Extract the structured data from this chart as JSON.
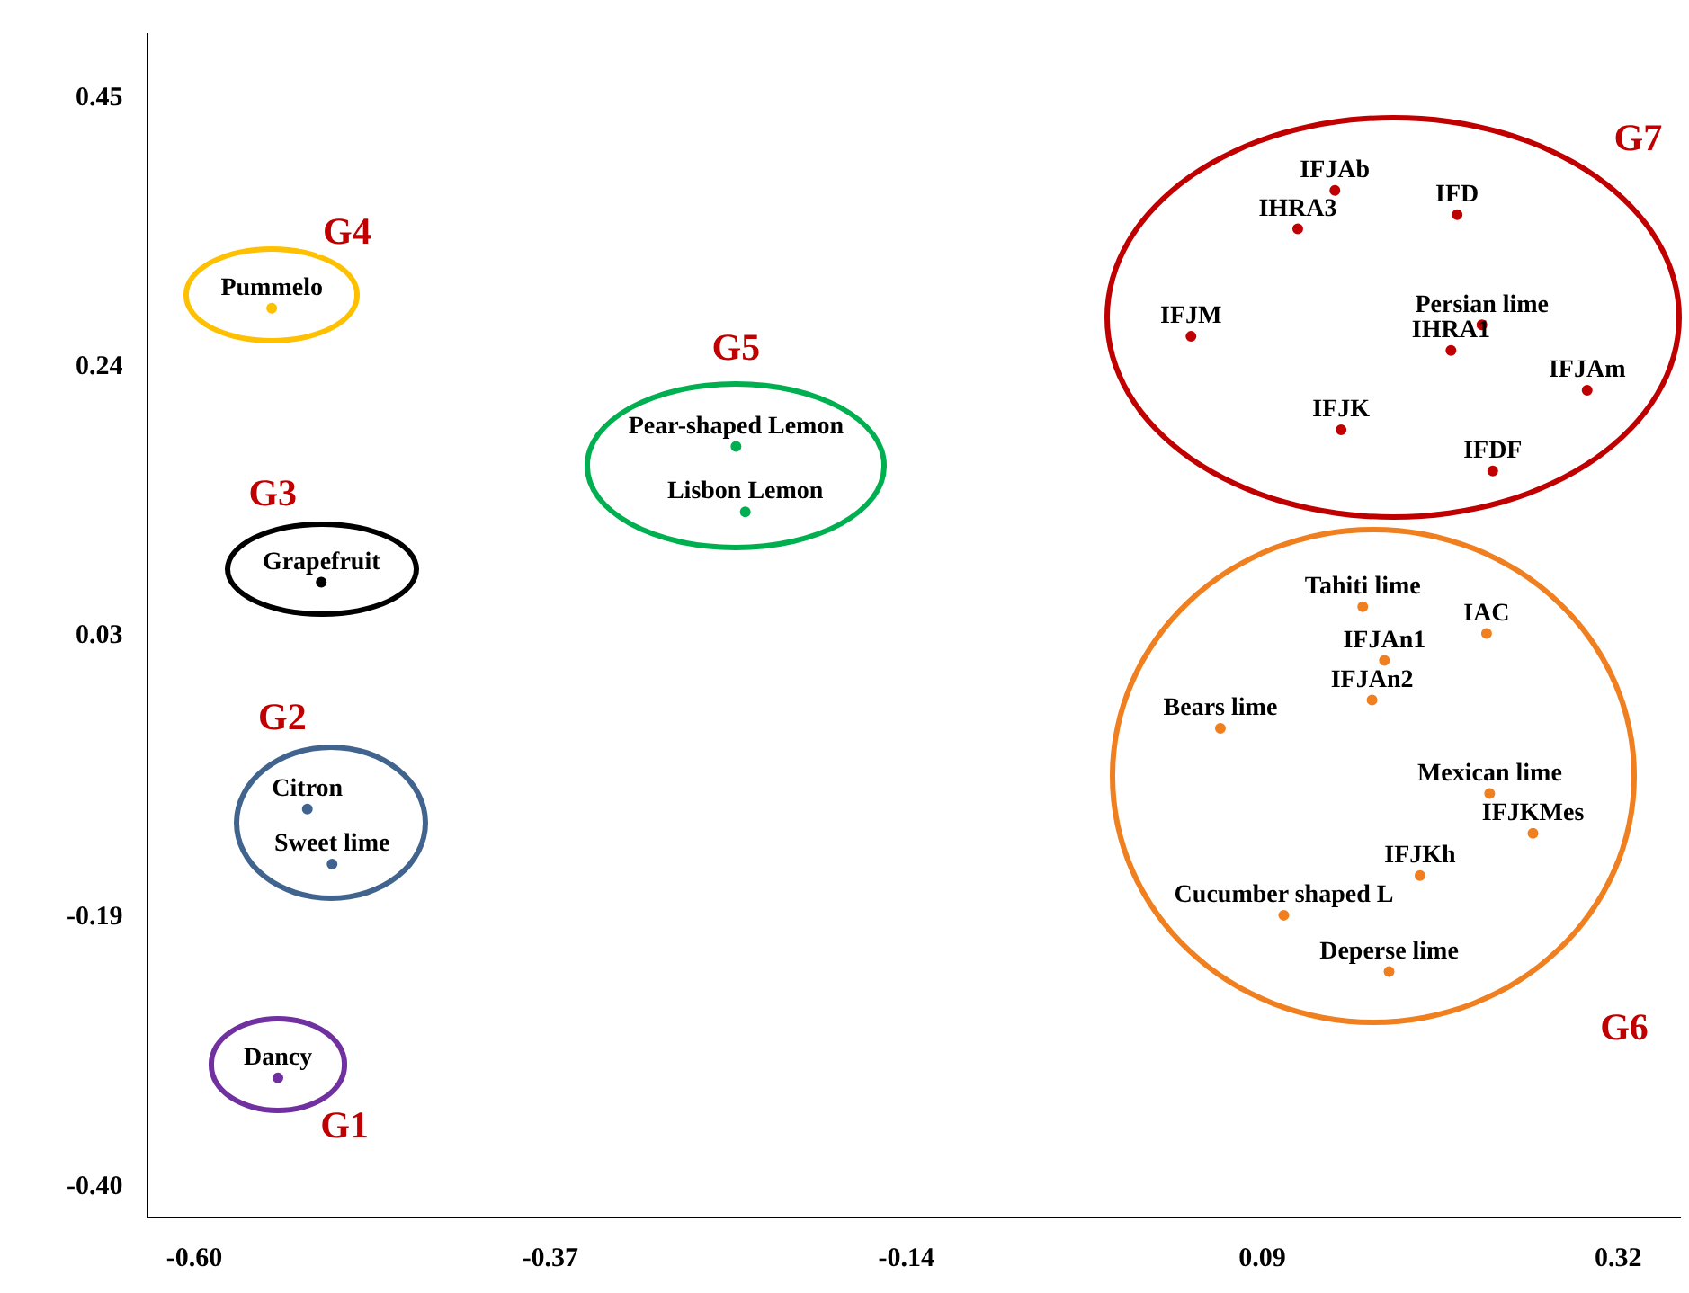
{
  "chart_data": {
    "type": "scatter",
    "marker": "circle",
    "grid": false,
    "legend": false,
    "annotations": [
      "G1",
      "G2",
      "G3",
      "G4",
      "G5",
      "G6",
      "G7"
    ],
    "xlim": [
      -0.63,
      0.36
    ],
    "ylim": [
      -0.424,
      0.5
    ],
    "xticks": [
      {
        "value": -0.6,
        "label": "-0.60"
      },
      {
        "value": -0.37,
        "label": "-0.37"
      },
      {
        "value": -0.14,
        "label": "-0.14"
      },
      {
        "value": 0.09,
        "label": "0.09"
      },
      {
        "value": 0.32,
        "label": "0.32"
      }
    ],
    "yticks": [
      {
        "value": -0.4,
        "label": "-0.40"
      },
      {
        "value": -0.19,
        "label": "-0.19"
      },
      {
        "value": 0.03,
        "label": "0.03"
      },
      {
        "value": 0.24,
        "label": "0.24"
      },
      {
        "value": 0.45,
        "label": "0.45"
      }
    ],
    "series": [
      {
        "color": "#7030a0",
        "x": [
          -0.546
        ],
        "values": [
          -0.315
        ],
        "value_labels": [
          "Dancy"
        ]
      },
      {
        "color": "#41648f",
        "x": [
          -0.527,
          -0.511
        ],
        "values": [
          -0.105,
          -0.148
        ],
        "value_labels": [
          "Citron",
          "Sweet lime"
        ]
      },
      {
        "color": "#000000",
        "x": [
          -0.518
        ],
        "values": [
          0.072
        ],
        "value_labels": [
          "Grapefruit"
        ]
      },
      {
        "color": "#ffc000",
        "x": [
          -0.55
        ],
        "values": [
          0.286
        ],
        "value_labels": [
          "Pummelo"
        ]
      },
      {
        "color": "#00b050",
        "x": [
          -0.25,
          -0.244
        ],
        "values": [
          0.178,
          0.127
        ],
        "value_labels": [
          "Pear-shaped Lemon",
          "Lisbon Lemon"
        ]
      },
      {
        "color": "#f07f20",
        "x": [
          0.155,
          0.235,
          0.169,
          0.161,
          0.063,
          0.237,
          0.265,
          0.192,
          0.104,
          0.172
        ],
        "values": [
          0.053,
          0.032,
          0.011,
          -0.02,
          -0.042,
          -0.093,
          -0.124,
          -0.157,
          -0.188,
          -0.232
        ],
        "value_labels": [
          "Tahiti lime",
          "IAC",
          "IFJAn1",
          "IFJAn2",
          "Bears lime",
          "Mexican lime",
          "IFJKMes",
          "IFJKh",
          "Cucumber shaped L",
          "Deperse lime"
        ]
      },
      {
        "color": "#c00000",
        "x": [
          0.137,
          0.216,
          0.113,
          0.232,
          0.212,
          0.044,
          0.3,
          0.141,
          0.239
        ],
        "values": [
          0.378,
          0.359,
          0.348,
          0.273,
          0.253,
          0.264,
          0.222,
          0.191,
          0.159
        ],
        "value_labels": [
          "IFJAb",
          "IFD",
          "IHRA3",
          "Persian lime",
          "IHRA1",
          "IFJM",
          "IFJAm",
          "IFJK",
          "IFDF"
        ]
      }
    ]
  }
}
